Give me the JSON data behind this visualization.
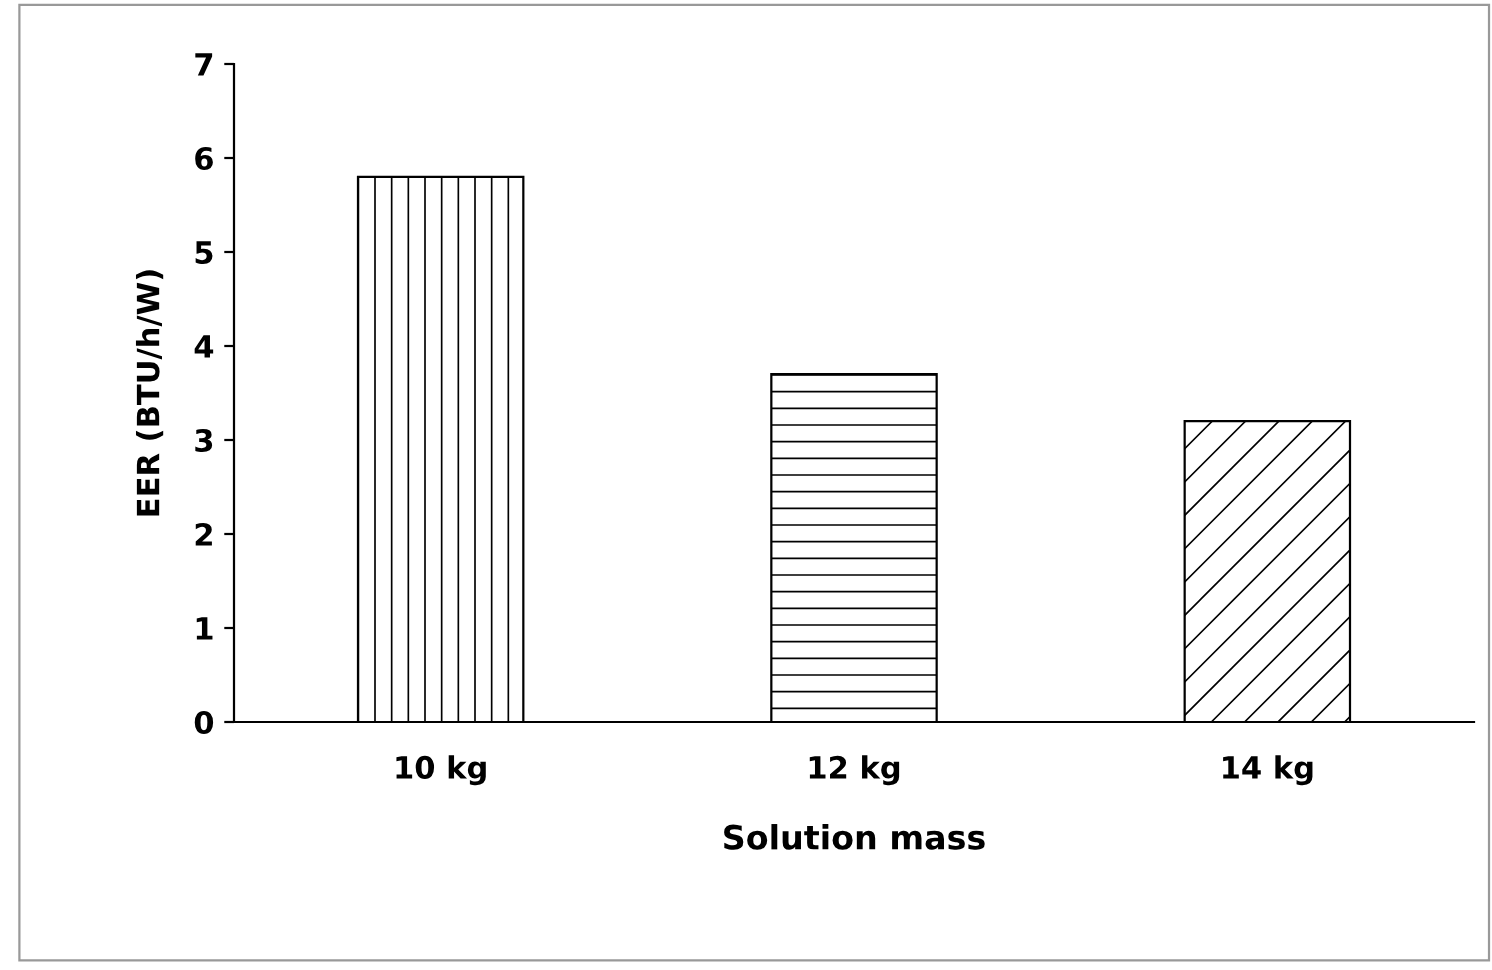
{
  "chart_data": {
    "type": "bar",
    "xlabel": "Solution mass",
    "ylabel": "EER (BTU/h/W)",
    "categories": [
      "10 kg",
      "12 kg",
      "14 kg"
    ],
    "values": [
      5.8,
      3.7,
      3.2
    ],
    "colors": [
      "#000000",
      "#000000",
      "#000000"
    ],
    "ylim": [
      0,
      7
    ],
    "yticks": [
      0,
      1,
      2,
      3,
      4,
      5,
      6,
      7
    ],
    "grid": false,
    "legend": false
  }
}
